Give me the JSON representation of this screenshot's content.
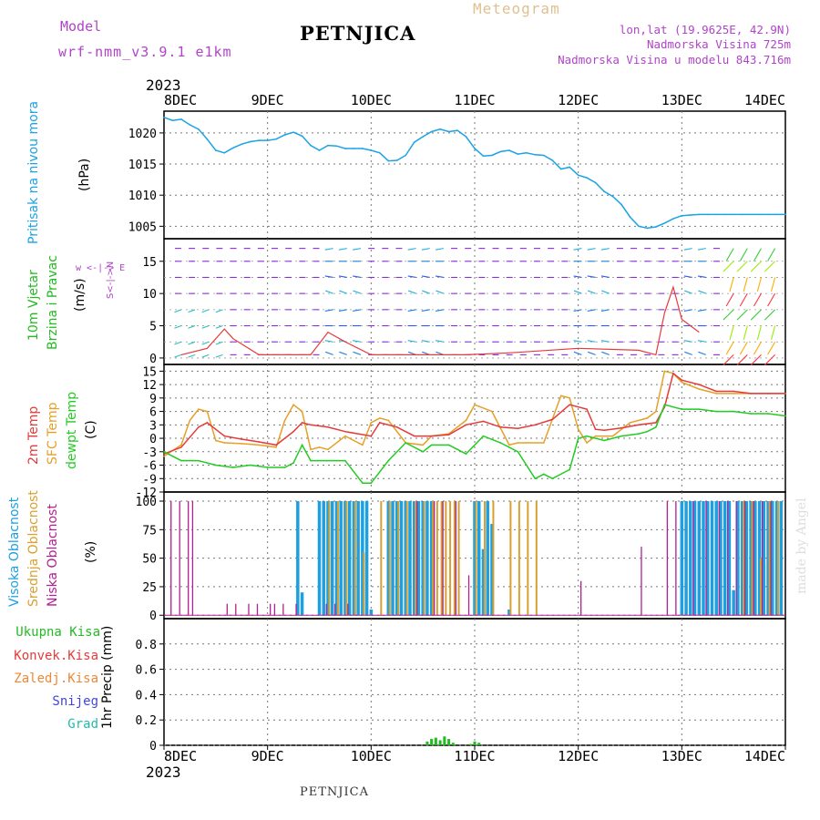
{
  "header": {
    "model_label": "Model",
    "model_name": "wrf-nmm_v3.9.1 e1km",
    "station": "PETNJICA",
    "product": "Meteogram",
    "lonlat": "lon,lat (19.9625E, 42.9N)",
    "altitude": "Nadmorska Visina 725m",
    "model_altitude": "Nadmorska Visina u modelu 843.716m",
    "footer_station": "PETNJICA",
    "watermark": "made by Angel"
  },
  "colors": {
    "pressure": "#1aa3e6",
    "wind_label": "#22bb22",
    "temp2m": "#e53a3a",
    "sfc": "#e6a028",
    "dewpoint": "#22cc22",
    "cloud_high": "#1e9fe0",
    "cloud_mid": "#d8a030",
    "cloud_low": "#b02090",
    "precip_total": "#22bb22",
    "precip_conv": "#e53a3a",
    "precip_frozen": "#ee8833",
    "snow": "#4444dd",
    "hail": "#22bbaa"
  },
  "axis": {
    "year": "2023",
    "days": [
      "8DEC",
      "9DEC",
      "10DEC",
      "11DEC",
      "12DEC",
      "13DEC",
      "14DEC"
    ]
  },
  "panels": {
    "pressure": {
      "name": "Pritisak na nivou mora",
      "unit": "(hPa)",
      "ticks": [
        "1005",
        "1010",
        "1015",
        "1020"
      ]
    },
    "wind": {
      "name1": "10m Vjetar",
      "name2": "Brzina i Pravac",
      "unit": "(m/s)",
      "compass": "w <-|-> E",
      "compass_ns": "S<-|->N",
      "ticks": [
        "0",
        "5",
        "10",
        "15"
      ]
    },
    "temp": {
      "name1": "2m Temp",
      "name2": "SFC Temp",
      "name3": "dewpt Temp",
      "unit": "(C)",
      "ticks": [
        "-12",
        "-9",
        "-6",
        "-3",
        "0",
        "3",
        "6",
        "9",
        "12",
        "15"
      ]
    },
    "cloud": {
      "name1": "Visoka Oblacnost",
      "name2": "Srednja Oblacnost",
      "name3": "Niska Oblacnost",
      "unit": "(%)",
      "ticks": [
        "0",
        "25",
        "50",
        "75",
        "100"
      ]
    },
    "precip": {
      "legend": [
        "Ukupna Kisa",
        "Konvek.Kisa",
        "Zaledj.Kisa",
        "Snijeg",
        "Grad"
      ],
      "ylabel": "1hr Precip (mm)",
      "ticks": [
        "0",
        "0.2",
        "0.4",
        "0.6",
        "0.8"
      ]
    }
  },
  "chart_data": [
    {
      "type": "line",
      "panel": "pressure",
      "x_unit": "hours since 8DEC 00UTC",
      "ylabel": "(hPa)",
      "ylim": [
        1003,
        1023.5
      ],
      "series": [
        {
          "name": "Pritisak na nivou mora",
          "x": [
            0,
            2,
            4,
            6,
            8,
            10,
            12,
            14,
            16,
            18,
            20,
            22,
            24,
            26,
            28,
            30,
            32,
            34,
            36,
            38,
            40,
            42,
            44,
            46,
            48,
            50,
            52,
            54,
            56,
            58,
            60,
            62,
            64,
            66,
            68,
            70,
            72,
            74,
            76,
            78,
            80,
            82,
            84,
            86,
            88,
            90,
            92,
            94,
            96,
            98,
            100,
            102,
            104,
            106,
            108,
            110,
            112,
            114,
            116,
            118,
            120,
            122,
            124,
            126,
            128,
            130,
            132,
            134,
            136,
            138,
            140,
            142,
            144
          ],
          "values": [
            1022.5,
            1022,
            1022.2,
            1021.3,
            1020.6,
            1019,
            1017.2,
            1016.8,
            1017.6,
            1018.2,
            1018.6,
            1018.8,
            1018.8,
            1019,
            1019.7,
            1020.1,
            1019.5,
            1018,
            1017.2,
            1018,
            1017.9,
            1017.5,
            1017.5,
            1017.5,
            1017.2,
            1016.8,
            1015.5,
            1015.6,
            1016.4,
            1018.5,
            1019.4,
            1020.2,
            1020.6,
            1020.2,
            1020.4,
            1019.4,
            1017.5,
            1016.3,
            1016.4,
            1017,
            1017.2,
            1016.6,
            1016.8,
            1016.5,
            1016.4,
            1015.6,
            1014.2,
            1014.5,
            1013.2,
            1012.8,
            1012,
            1010.6,
            1009.8,
            1008.5,
            1006.5,
            1005,
            1004.7,
            1004.9,
            1005.5,
            1006.2,
            1006.7,
            1006.8,
            1006.9,
            1006.9,
            1006.9,
            1006.9,
            1006.9,
            1006.9,
            1006.9,
            1006.9,
            1006.9,
            1006.9,
            1006.9
          ]
        }
      ]
    },
    {
      "type": "line",
      "panel": "temperature",
      "x_unit": "hours since 8DEC 00UTC",
      "ylabel": "(C)",
      "ylim": [
        -12,
        16.5
      ],
      "series": [
        {
          "name": "2m Temp",
          "x": [
            0,
            4,
            8,
            10,
            14,
            18,
            22,
            26,
            30,
            32,
            34,
            38,
            42,
            48,
            50,
            54,
            58,
            62,
            66,
            70,
            74,
            78,
            82,
            86,
            90,
            94,
            98,
            100,
            102,
            106,
            110,
            114,
            116,
            118,
            120,
            124,
            128,
            132,
            136,
            140,
            144
          ],
          "values": [
            -3.5,
            -2,
            2.5,
            3.5,
            0.5,
            -0.2,
            -0.8,
            -1.5,
            1.5,
            3.5,
            3,
            2.5,
            1.5,
            0.5,
            3.5,
            2.5,
            0.5,
            0.5,
            0.8,
            3,
            3.8,
            2.5,
            2.2,
            3,
            4.2,
            7.5,
            6.5,
            2,
            1.8,
            2.3,
            3,
            3.5,
            7,
            14.5,
            13,
            12,
            10.5,
            10.5,
            10,
            10,
            10
          ]
        },
        {
          "name": "SFC Temp",
          "x": [
            0,
            4,
            6,
            8,
            10,
            12,
            14,
            18,
            22,
            26,
            28,
            30,
            32,
            34,
            36,
            38,
            42,
            46,
            48,
            50,
            52,
            56,
            60,
            62,
            66,
            70,
            72,
            76,
            80,
            82,
            84,
            88,
            92,
            94,
            96,
            98,
            100,
            104,
            108,
            112,
            114,
            116,
            118,
            120,
            124,
            128,
            132,
            136,
            140,
            144
          ],
          "values": [
            -4,
            -1.5,
            4,
            6.5,
            6,
            -0.5,
            -1,
            -1.2,
            -1.5,
            -2,
            4,
            7.5,
            6,
            -2.5,
            -2,
            -2.5,
            0.5,
            -1.5,
            3.5,
            4.5,
            4,
            -1,
            -1.5,
            0.5,
            1,
            4,
            7.5,
            6,
            -1.5,
            -1,
            -1,
            -1,
            9.5,
            9,
            2,
            -1,
            0.5,
            0.5,
            3.5,
            4.5,
            6,
            15,
            14.5,
            12.5,
            11,
            10,
            10,
            10,
            10,
            10
          ]
        },
        {
          "name": "dewpt Temp",
          "x": [
            0,
            4,
            8,
            12,
            16,
            20,
            24,
            28,
            30,
            32,
            34,
            38,
            42,
            46,
            48,
            52,
            56,
            60,
            62,
            66,
            70,
            74,
            78,
            82,
            86,
            88,
            90,
            94,
            96,
            98,
            102,
            106,
            110,
            112,
            114,
            116,
            118,
            120,
            124,
            128,
            132,
            136,
            140,
            144
          ],
          "values": [
            -3,
            -5,
            -5,
            -6,
            -6.5,
            -6,
            -6.5,
            -6.5,
            -5.5,
            -1.5,
            -5,
            -5,
            -5,
            -10,
            -10,
            -5,
            -1,
            -3,
            -1.5,
            -1.5,
            -3.5,
            0.5,
            -1,
            -3,
            -9,
            -8,
            -9,
            -7,
            0,
            0.5,
            -0.5,
            0.5,
            1,
            1.5,
            2.5,
            7.5,
            7,
            6.5,
            6.5,
            6,
            6,
            5.5,
            5.5,
            5
          ]
        }
      ]
    },
    {
      "type": "bar",
      "panel": "cloud",
      "x_unit": "hours since 8DEC 00UTC",
      "ylabel": "(%)",
      "ylim": [
        0,
        100
      ],
      "series": [
        {
          "name": "Visoka Oblacnost",
          "x": [
            31,
            32,
            36,
            37,
            38,
            39,
            40,
            41,
            42,
            43,
            44,
            45,
            46,
            47,
            48,
            52,
            53,
            54,
            55,
            56,
            57,
            58,
            59,
            60,
            61,
            62,
            72,
            73,
            74,
            75,
            76,
            80,
            120,
            121,
            122,
            123,
            124,
            125,
            126,
            127,
            128,
            129,
            130,
            131,
            132,
            133,
            134,
            135,
            136,
            137,
            138,
            139,
            140,
            141,
            142,
            143
          ],
          "values": [
            100,
            20,
            100,
            100,
            100,
            100,
            100,
            100,
            100,
            100,
            100,
            100,
            100,
            100,
            5,
            100,
            100,
            100,
            100,
            100,
            100,
            100,
            100,
            100,
            100,
            100,
            100,
            100,
            58,
            100,
            80,
            5,
            100,
            100,
            100,
            100,
            100,
            100,
            100,
            100,
            100,
            100,
            100,
            100,
            22,
            100,
            100,
            100,
            100,
            100,
            100,
            100,
            100,
            100,
            100,
            100
          ]
        },
        {
          "name": "Srednja Oblacnost",
          "x": [
            38,
            40,
            42,
            44,
            46,
            50,
            52,
            54,
            56,
            58,
            60,
            62,
            63,
            64,
            65,
            66,
            67,
            68,
            72,
            74,
            76,
            80,
            82,
            84,
            86,
            134,
            136,
            138,
            140,
            142
          ],
          "values": [
            100,
            100,
            100,
            100,
            55,
            100,
            100,
            100,
            100,
            100,
            100,
            100,
            100,
            100,
            100,
            100,
            100,
            100,
            100,
            100,
            100,
            100,
            100,
            100,
            100,
            100,
            100,
            50,
            100,
            100
          ]
        },
        {
          "name": "Niska Oblacnost",
          "x": [
            1,
            3,
            5,
            6,
            14,
            16,
            19,
            21,
            24,
            25,
            27,
            30,
            37,
            39,
            42,
            58,
            62,
            64,
            67,
            70,
            96,
            110,
            116,
            118,
            122,
            125,
            128,
            130,
            132,
            134,
            136,
            138,
            140
          ],
          "values": [
            100,
            100,
            100,
            100,
            10,
            10,
            10,
            10,
            10,
            10,
            10,
            10,
            10,
            10,
            10,
            100,
            100,
            100,
            100,
            35,
            30,
            60,
            100,
            100,
            100,
            100,
            100,
            100,
            100,
            100,
            100,
            100,
            100
          ]
        }
      ]
    },
    {
      "type": "bar",
      "panel": "precipitation",
      "x_unit": "hours since 8DEC 00UTC",
      "ylabel": "1hr Precip (mm)",
      "ylim": [
        0,
        1.0
      ],
      "series": [
        {
          "name": "Ukupna Kisa",
          "x": [
            61,
            62,
            63,
            64,
            65,
            66,
            67,
            71,
            72,
            73
          ],
          "values": [
            0.03,
            0.05,
            0.06,
            0.04,
            0.07,
            0.05,
            0.02,
            0.01,
            0.03,
            0.02
          ]
        }
      ]
    }
  ]
}
